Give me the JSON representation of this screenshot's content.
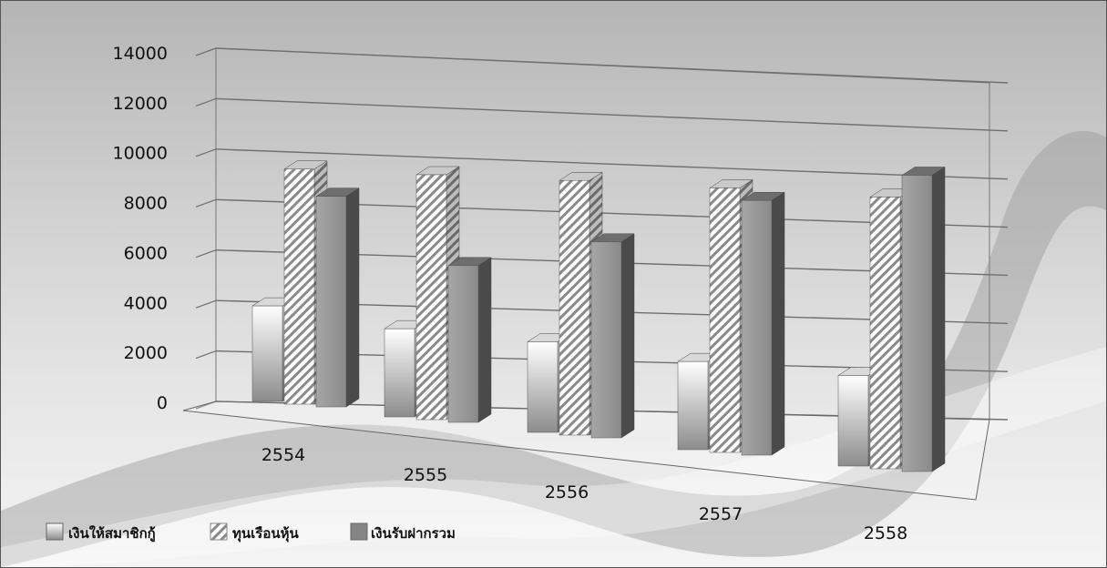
{
  "chart_data": {
    "type": "bar",
    "categories": [
      "2554",
      "2555",
      "2556",
      "2557",
      "2558"
    ],
    "series": [
      {
        "name": "เงินให้สมาชิกกู้",
        "values": [
          3900,
          3600,
          3700,
          3600,
          3700
        ],
        "pattern": "gradient-light"
      },
      {
        "name": "ทุนเรือนหุ้น",
        "values": [
          9600,
          10000,
          10400,
          10800,
          11100
        ],
        "pattern": "diagonal-hatch"
      },
      {
        "name": "เงินรับฝากรวม",
        "values": [
          8600,
          6400,
          8000,
          10400,
          12100
        ],
        "pattern": "solid-gray"
      }
    ],
    "yticks": [
      "0",
      "2000",
      "4000",
      "6000",
      "8000",
      "10000",
      "12000",
      "14000"
    ],
    "ylim": [
      0,
      14000
    ],
    "grid": true,
    "legend_position": "bottom-left",
    "style": "3d-perspective"
  }
}
